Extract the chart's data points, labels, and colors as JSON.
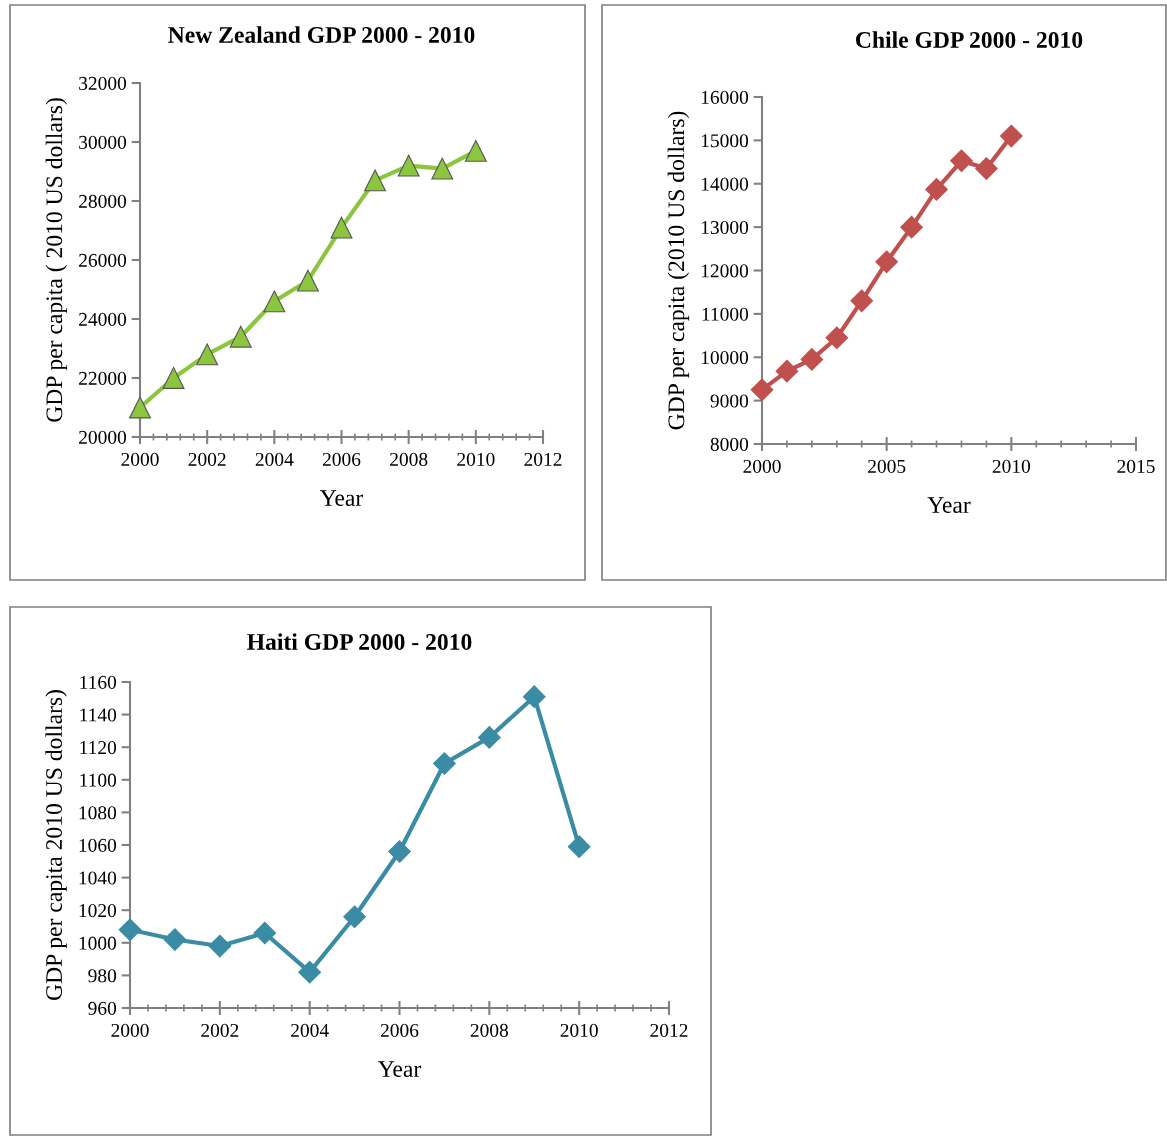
{
  "chart_data": [
    {
      "type": "line",
      "title": "New Zealand GDP 2000 - 2010",
      "xlabel": "Year",
      "ylabel": "GDP per capita ( 2010 US dollars)",
      "x": [
        2000,
        2001,
        2002,
        2003,
        2004,
        2005,
        2006,
        2007,
        2008,
        2009,
        2010
      ],
      "series": [
        {
          "color": "#8cc63f",
          "values": [
            21000,
            22000,
            22800,
            23400,
            24600,
            25300,
            27100,
            28700,
            29200,
            29100,
            29700
          ]
        }
      ],
      "xlim": [
        2000,
        2012
      ],
      "xticks": [
        2000,
        2002,
        2004,
        2006,
        2008,
        2010,
        2012
      ],
      "ylim": [
        20000,
        32000
      ],
      "yticks": [
        20000,
        22000,
        24000,
        26000,
        28000,
        30000,
        32000
      ],
      "marker": "triangle",
      "line_style": "solid",
      "grid": false,
      "legend": false
    },
    {
      "type": "line",
      "title": "Chile GDP 2000 - 2010",
      "xlabel": "Year",
      "ylabel": "GDP per capita (2010 US dollars)",
      "x": [
        2000,
        2001,
        2002,
        2003,
        2004,
        2005,
        2006,
        2007,
        2008,
        2009,
        2010
      ],
      "series": [
        {
          "color": "#c0504d",
          "values": [
            9250,
            9680,
            9950,
            10450,
            11300,
            12200,
            13000,
            13870,
            14530,
            14350,
            15100
          ]
        }
      ],
      "xlim": [
        2000,
        2015
      ],
      "xticks": [
        2000,
        2005,
        2010,
        2015
      ],
      "ylim": [
        8000,
        16000
      ],
      "yticks": [
        8000,
        9000,
        10000,
        11000,
        12000,
        13000,
        14000,
        15000,
        16000
      ],
      "marker": "diamond",
      "line_style": "solid",
      "grid": false,
      "legend": false
    },
    {
      "type": "line",
      "title": "Haiti GDP 2000 - 2010",
      "xlabel": "Year",
      "ylabel": "GDP per capita 2010 US dollars)",
      "x": [
        2000,
        2001,
        2002,
        2003,
        2004,
        2005,
        2006,
        2007,
        2008,
        2009,
        2010
      ],
      "series": [
        {
          "color": "#3a8ba4",
          "values": [
            1008,
            1002,
            998,
            1006,
            982,
            1016,
            1056,
            1110,
            1126,
            1151,
            1059
          ]
        }
      ],
      "xlim": [
        2000,
        2012
      ],
      "xticks": [
        2000,
        2002,
        2004,
        2006,
        2008,
        2010,
        2012
      ],
      "ylim": [
        960,
        1160
      ],
      "yticks": [
        960,
        980,
        1000,
        1020,
        1040,
        1060,
        1080,
        1100,
        1120,
        1140,
        1160
      ],
      "marker": "diamond",
      "line_style": "solid",
      "grid": false,
      "legend": false
    }
  ]
}
